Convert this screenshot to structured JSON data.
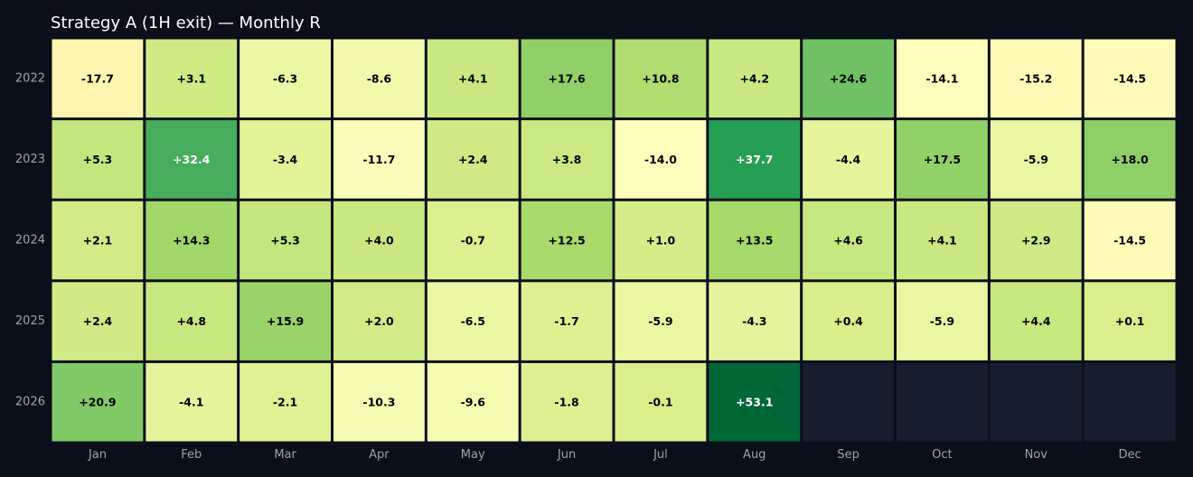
{
  "title": "Strategy A (1H exit) — Monthly R",
  "colors": {
    "background": "#0b0f19",
    "empty_cell": "#161d2c",
    "grid_line": "#0b0f19",
    "tick_label": "#9aa3b2",
    "scale": [
      "#f46d43",
      "#fdae61",
      "#fee08b",
      "#ffffbf",
      "#d9ef8b",
      "#a6d96a",
      "#66bd63",
      "#1a9850",
      "#006837"
    ]
  },
  "chart_data": {
    "type": "heatmap",
    "title": "Strategy A (1H exit) — Monthly R",
    "xlabel": "",
    "ylabel": "",
    "x_categories": [
      "Jan",
      "Feb",
      "Mar",
      "Apr",
      "May",
      "Jun",
      "Jul",
      "Aug",
      "Sep",
      "Oct",
      "Nov",
      "Dec"
    ],
    "y_categories": [
      "2022",
      "2023",
      "2024",
      "2025",
      "2026"
    ],
    "values": [
      [
        -17.7,
        3.1,
        -6.3,
        -8.6,
        4.1,
        17.6,
        10.8,
        4.2,
        24.6,
        -14.1,
        -15.2,
        -14.5
      ],
      [
        5.3,
        32.4,
        -3.4,
        -11.7,
        2.4,
        3.8,
        -14.0,
        37.7,
        -4.4,
        17.5,
        -5.9,
        18.0
      ],
      [
        2.1,
        14.3,
        5.3,
        4.0,
        -0.7,
        12.5,
        1.0,
        13.5,
        4.6,
        4.1,
        2.9,
        -14.5
      ],
      [
        2.4,
        4.8,
        15.9,
        2.0,
        -6.5,
        -1.7,
        -5.9,
        -4.3,
        0.4,
        -5.9,
        4.4,
        0.1
      ],
      [
        20.9,
        -4.1,
        -2.1,
        -10.3,
        -9.6,
        -1.8,
        -0.1,
        53.1,
        null,
        null,
        null,
        null
      ]
    ],
    "value_range": [
      -53.1,
      53.1
    ],
    "colormap": "RdYlGn",
    "annotations_shown": true,
    "grid": false,
    "legend": "none"
  }
}
